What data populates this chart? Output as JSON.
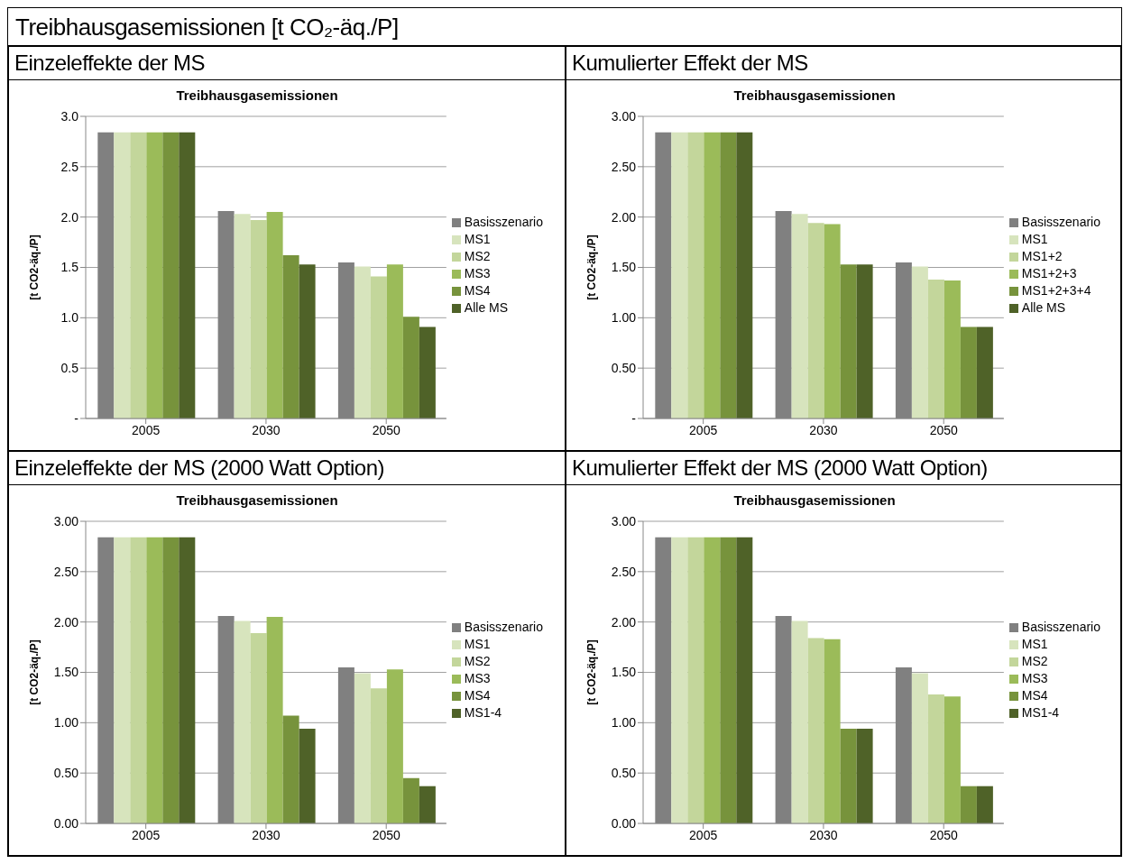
{
  "chart_data": [
    {
      "type": "other",
      "title": "Treibhausgasemissionen [t CO₂-äq./P]"
    },
    {
      "type": "bar",
      "title": "Einzeleffekte der MS",
      "subtitle": "Treibhausgasemissionen",
      "ylabel": "[t CO2-äq./P]",
      "categories": [
        "2005",
        "2030",
        "2050"
      ],
      "ylim": [
        0,
        3
      ],
      "yticks": [
        {
          "value": 0,
          "label": "-"
        },
        {
          "value": 0.5,
          "label": "0.5"
        },
        {
          "value": 1,
          "label": "1.0"
        },
        {
          "value": 1.5,
          "label": "1.5"
        },
        {
          "value": 2,
          "label": "2.0"
        },
        {
          "value": 2.5,
          "label": "2.5"
        },
        {
          "value": 3,
          "label": "3.0"
        }
      ],
      "grid": "y",
      "legend": "right",
      "series": [
        {
          "name": "Basisszenario",
          "color": "#808080",
          "values": [
            2.84,
            2.06,
            1.55
          ]
        },
        {
          "name": "MS1",
          "color": "#d7e4bd",
          "values": [
            2.84,
            2.03,
            1.51
          ]
        },
        {
          "name": "MS2",
          "color": "#c3d69b",
          "values": [
            2.84,
            1.97,
            1.41
          ]
        },
        {
          "name": "MS3",
          "color": "#9bbb59",
          "values": [
            2.84,
            2.05,
            1.53
          ]
        },
        {
          "name": "MS4",
          "color": "#77933c",
          "values": [
            2.84,
            1.62,
            1.01
          ]
        },
        {
          "name": "Alle MS",
          "color": "#4f6228",
          "values": [
            2.84,
            1.53,
            0.91
          ]
        }
      ]
    },
    {
      "type": "bar",
      "title": "Kumulierter Effekt der MS",
      "subtitle": "Treibhausgasemissionen",
      "ylabel": "[t CO2-äq./P]",
      "categories": [
        "2005",
        "2030",
        "2050"
      ],
      "ylim": [
        0,
        3
      ],
      "yticks": [
        {
          "value": 0,
          "label": "-"
        },
        {
          "value": 0.5,
          "label": "0.50"
        },
        {
          "value": 1,
          "label": "1.00"
        },
        {
          "value": 1.5,
          "label": "1.50"
        },
        {
          "value": 2,
          "label": "2.00"
        },
        {
          "value": 2.5,
          "label": "2.50"
        },
        {
          "value": 3,
          "label": "3.00"
        }
      ],
      "grid": "y",
      "legend": "right",
      "series": [
        {
          "name": "Basisszenario",
          "color": "#808080",
          "values": [
            2.84,
            2.06,
            1.55
          ]
        },
        {
          "name": "MS1",
          "color": "#d7e4bd",
          "values": [
            2.84,
            2.03,
            1.51
          ]
        },
        {
          "name": "MS1+2",
          "color": "#c3d69b",
          "values": [
            2.84,
            1.94,
            1.38
          ]
        },
        {
          "name": "MS1+2+3",
          "color": "#9bbb59",
          "values": [
            2.84,
            1.93,
            1.37
          ]
        },
        {
          "name": "MS1+2+3+4",
          "color": "#77933c",
          "values": [
            2.84,
            1.53,
            0.91
          ]
        },
        {
          "name": "Alle MS",
          "color": "#4f6228",
          "values": [
            2.84,
            1.53,
            0.91
          ]
        }
      ]
    },
    {
      "type": "bar",
      "title": "Einzeleffekte der MS (2000 Watt Option)",
      "subtitle": "Treibhausgasemissionen",
      "ylabel": "[t CO2-äq./P]",
      "categories": [
        "2005",
        "2030",
        "2050"
      ],
      "ylim": [
        0,
        3
      ],
      "yticks": [
        {
          "value": 0,
          "label": "0.00"
        },
        {
          "value": 0.5,
          "label": "0.50"
        },
        {
          "value": 1,
          "label": "1.00"
        },
        {
          "value": 1.5,
          "label": "1.50"
        },
        {
          "value": 2,
          "label": "2.00"
        },
        {
          "value": 2.5,
          "label": "2.50"
        },
        {
          "value": 3,
          "label": "3.00"
        }
      ],
      "grid": "y",
      "legend": "right",
      "series": [
        {
          "name": "Basisszenario",
          "color": "#808080",
          "values": [
            2.84,
            2.06,
            1.55
          ]
        },
        {
          "name": "MS1",
          "color": "#d7e4bd",
          "values": [
            2.84,
            2.01,
            1.49
          ]
        },
        {
          "name": "MS2",
          "color": "#c3d69b",
          "values": [
            2.84,
            1.89,
            1.34
          ]
        },
        {
          "name": "MS3",
          "color": "#9bbb59",
          "values": [
            2.84,
            2.05,
            1.53
          ]
        },
        {
          "name": "MS4",
          "color": "#77933c",
          "values": [
            2.84,
            1.07,
            0.45
          ]
        },
        {
          "name": "MS1-4",
          "color": "#4f6228",
          "values": [
            2.84,
            0.94,
            0.37
          ]
        }
      ]
    },
    {
      "type": "bar",
      "title": "Kumulierter Effekt der MS (2000 Watt Option)",
      "subtitle": "Treibhausgasemissionen",
      "ylabel": "[t CO2-äq./P]",
      "categories": [
        "2005",
        "2030",
        "2050"
      ],
      "ylim": [
        0,
        3
      ],
      "yticks": [
        {
          "value": 0,
          "label": "0.00"
        },
        {
          "value": 0.5,
          "label": "0.50"
        },
        {
          "value": 1,
          "label": "1.00"
        },
        {
          "value": 1.5,
          "label": "1.50"
        },
        {
          "value": 2,
          "label": "2.00"
        },
        {
          "value": 2.5,
          "label": "2.50"
        },
        {
          "value": 3,
          "label": "3.00"
        }
      ],
      "grid": "y",
      "legend": "right",
      "series": [
        {
          "name": "Basisszenario",
          "color": "#808080",
          "values": [
            2.84,
            2.06,
            1.55
          ]
        },
        {
          "name": "MS1",
          "color": "#d7e4bd",
          "values": [
            2.84,
            2.01,
            1.49
          ]
        },
        {
          "name": "MS2",
          "color": "#c3d69b",
          "values": [
            2.84,
            1.84,
            1.28
          ]
        },
        {
          "name": "MS3",
          "color": "#9bbb59",
          "values": [
            2.84,
            1.83,
            1.26
          ]
        },
        {
          "name": "MS4",
          "color": "#77933c",
          "values": [
            2.84,
            0.94,
            0.37
          ]
        },
        {
          "name": "MS1-4",
          "color": "#4f6228",
          "values": [
            2.84,
            0.94,
            0.37
          ]
        }
      ]
    }
  ]
}
